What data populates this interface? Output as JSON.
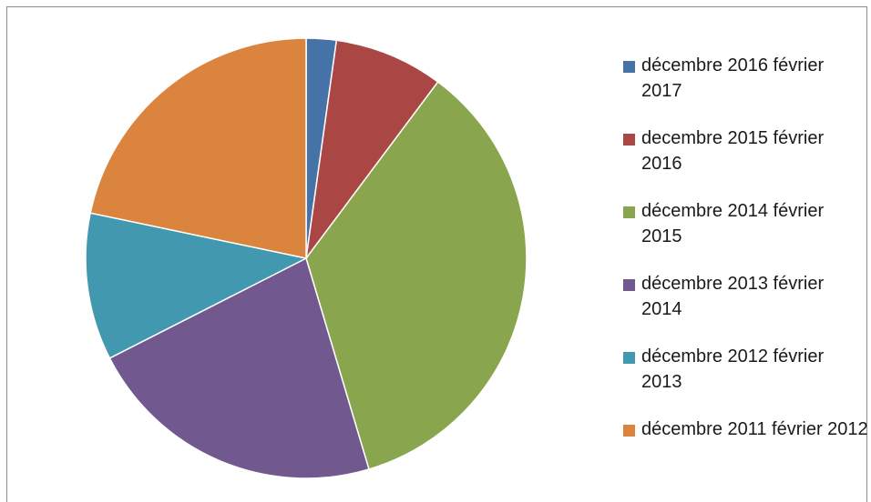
{
  "chart_data": {
    "type": "pie",
    "title": "",
    "legend_position": "right",
    "slices": [
      {
        "label": "décembre 2016 février 2017",
        "value": 2.2,
        "color": "#4572A7"
      },
      {
        "label": "decembre 2015 février 2016",
        "value": 8.0,
        "color": "#AA4643"
      },
      {
        "label": "décembre 2014 février 2015",
        "value": 35.2,
        "color": "#89A54E"
      },
      {
        "label": "décembre 2013 février 2014",
        "value": 22.1,
        "color": "#71588F"
      },
      {
        "label": "décembre 2012 février 2013",
        "value": 10.8,
        "color": "#4198AF"
      },
      {
        "label": "décembre 2011 février 2012",
        "value": 21.7,
        "color": "#DB843D"
      }
    ]
  }
}
